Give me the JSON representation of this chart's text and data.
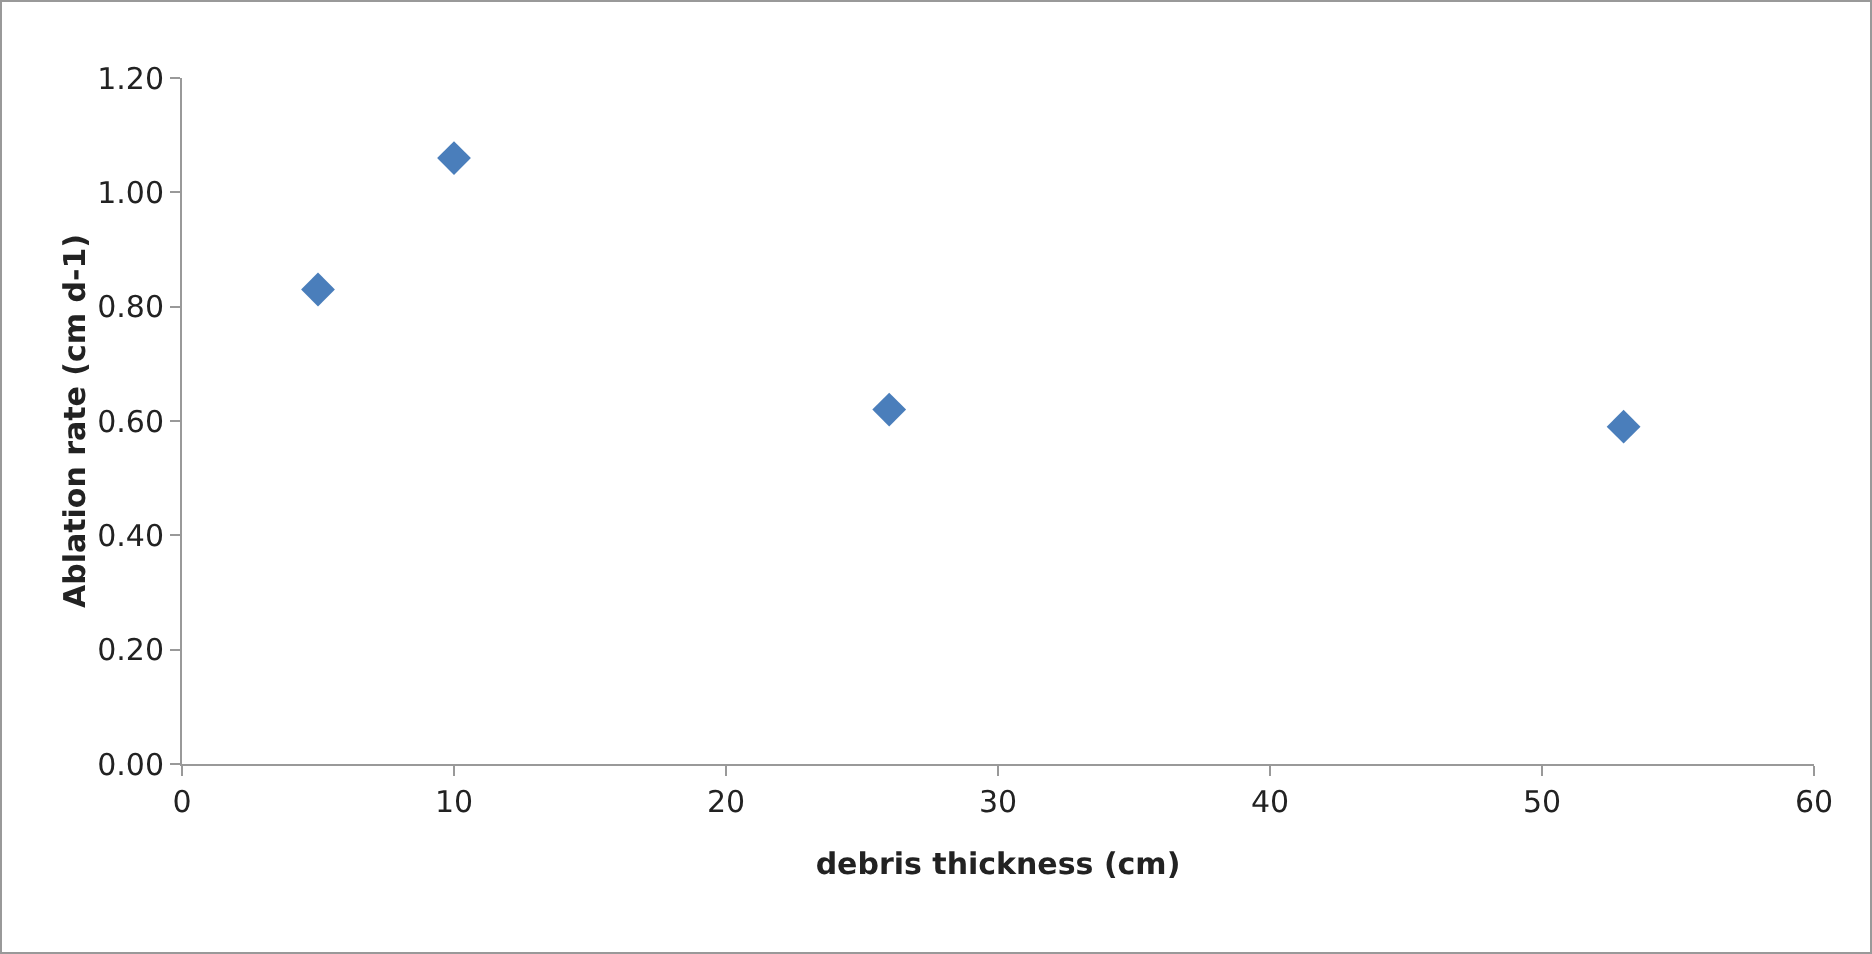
{
  "chart_data": {
    "type": "scatter",
    "xlabel": "debris thickness (cm)",
    "ylabel": "Ablation rate (cm d-1)",
    "x": [
      5,
      10,
      26,
      53
    ],
    "series": [
      {
        "color": "#4a7ebb",
        "values": [
          0.83,
          1.06,
          0.62,
          0.59
        ]
      }
    ],
    "xlim": [
      0,
      60
    ],
    "xticks": [
      0,
      10,
      20,
      30,
      40,
      50,
      60
    ],
    "ylim": [
      0,
      1.2
    ],
    "yticks": [
      {
        "value": 0,
        "label": "0.00"
      },
      {
        "value": 0.2,
        "label": "0.20"
      },
      {
        "value": 0.4,
        "label": "0.40"
      },
      {
        "value": 0.6,
        "label": "0.60"
      },
      {
        "value": 0.8,
        "label": "0.80"
      },
      {
        "value": 1,
        "label": "1.00"
      },
      {
        "value": 1.2,
        "label": "1.20"
      }
    ],
    "grid": false,
    "marker": "diamond"
  }
}
